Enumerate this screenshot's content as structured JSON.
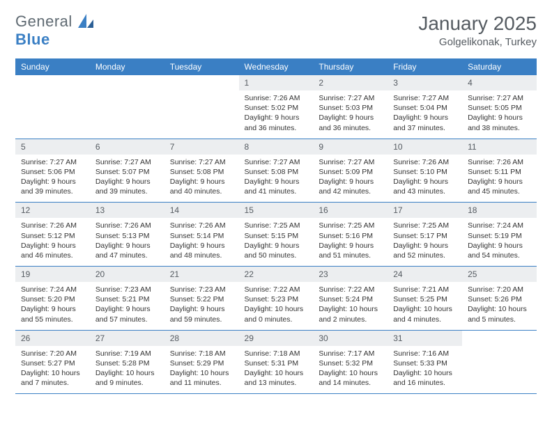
{
  "brand": {
    "name_a": "General",
    "name_b": "Blue"
  },
  "header": {
    "title": "January 2025",
    "location": "Golgelikonak, Turkey"
  },
  "colors": {
    "accent": "#3a7fc4",
    "header_bg": "#3a7fc4",
    "daynum_bg": "#eceef0",
    "text": "#333333",
    "muted": "#555b61",
    "background": "#ffffff"
  },
  "weekdays": [
    "Sunday",
    "Monday",
    "Tuesday",
    "Wednesday",
    "Thursday",
    "Friday",
    "Saturday"
  ],
  "weeks": [
    [
      null,
      null,
      null,
      {
        "n": "1",
        "sr": "7:26 AM",
        "ss": "5:02 PM",
        "dl": "9 hours and 36 minutes."
      },
      {
        "n": "2",
        "sr": "7:27 AM",
        "ss": "5:03 PM",
        "dl": "9 hours and 36 minutes."
      },
      {
        "n": "3",
        "sr": "7:27 AM",
        "ss": "5:04 PM",
        "dl": "9 hours and 37 minutes."
      },
      {
        "n": "4",
        "sr": "7:27 AM",
        "ss": "5:05 PM",
        "dl": "9 hours and 38 minutes."
      }
    ],
    [
      {
        "n": "5",
        "sr": "7:27 AM",
        "ss": "5:06 PM",
        "dl": "9 hours and 39 minutes."
      },
      {
        "n": "6",
        "sr": "7:27 AM",
        "ss": "5:07 PM",
        "dl": "9 hours and 39 minutes."
      },
      {
        "n": "7",
        "sr": "7:27 AM",
        "ss": "5:08 PM",
        "dl": "9 hours and 40 minutes."
      },
      {
        "n": "8",
        "sr": "7:27 AM",
        "ss": "5:08 PM",
        "dl": "9 hours and 41 minutes."
      },
      {
        "n": "9",
        "sr": "7:27 AM",
        "ss": "5:09 PM",
        "dl": "9 hours and 42 minutes."
      },
      {
        "n": "10",
        "sr": "7:26 AM",
        "ss": "5:10 PM",
        "dl": "9 hours and 43 minutes."
      },
      {
        "n": "11",
        "sr": "7:26 AM",
        "ss": "5:11 PM",
        "dl": "9 hours and 45 minutes."
      }
    ],
    [
      {
        "n": "12",
        "sr": "7:26 AM",
        "ss": "5:12 PM",
        "dl": "9 hours and 46 minutes."
      },
      {
        "n": "13",
        "sr": "7:26 AM",
        "ss": "5:13 PM",
        "dl": "9 hours and 47 minutes."
      },
      {
        "n": "14",
        "sr": "7:26 AM",
        "ss": "5:14 PM",
        "dl": "9 hours and 48 minutes."
      },
      {
        "n": "15",
        "sr": "7:25 AM",
        "ss": "5:15 PM",
        "dl": "9 hours and 50 minutes."
      },
      {
        "n": "16",
        "sr": "7:25 AM",
        "ss": "5:16 PM",
        "dl": "9 hours and 51 minutes."
      },
      {
        "n": "17",
        "sr": "7:25 AM",
        "ss": "5:17 PM",
        "dl": "9 hours and 52 minutes."
      },
      {
        "n": "18",
        "sr": "7:24 AM",
        "ss": "5:19 PM",
        "dl": "9 hours and 54 minutes."
      }
    ],
    [
      {
        "n": "19",
        "sr": "7:24 AM",
        "ss": "5:20 PM",
        "dl": "9 hours and 55 minutes."
      },
      {
        "n": "20",
        "sr": "7:23 AM",
        "ss": "5:21 PM",
        "dl": "9 hours and 57 minutes."
      },
      {
        "n": "21",
        "sr": "7:23 AM",
        "ss": "5:22 PM",
        "dl": "9 hours and 59 minutes."
      },
      {
        "n": "22",
        "sr": "7:22 AM",
        "ss": "5:23 PM",
        "dl": "10 hours and 0 minutes."
      },
      {
        "n": "23",
        "sr": "7:22 AM",
        "ss": "5:24 PM",
        "dl": "10 hours and 2 minutes."
      },
      {
        "n": "24",
        "sr": "7:21 AM",
        "ss": "5:25 PM",
        "dl": "10 hours and 4 minutes."
      },
      {
        "n": "25",
        "sr": "7:20 AM",
        "ss": "5:26 PM",
        "dl": "10 hours and 5 minutes."
      }
    ],
    [
      {
        "n": "26",
        "sr": "7:20 AM",
        "ss": "5:27 PM",
        "dl": "10 hours and 7 minutes."
      },
      {
        "n": "27",
        "sr": "7:19 AM",
        "ss": "5:28 PM",
        "dl": "10 hours and 9 minutes."
      },
      {
        "n": "28",
        "sr": "7:18 AM",
        "ss": "5:29 PM",
        "dl": "10 hours and 11 minutes."
      },
      {
        "n": "29",
        "sr": "7:18 AM",
        "ss": "5:31 PM",
        "dl": "10 hours and 13 minutes."
      },
      {
        "n": "30",
        "sr": "7:17 AM",
        "ss": "5:32 PM",
        "dl": "10 hours and 14 minutes."
      },
      {
        "n": "31",
        "sr": "7:16 AM",
        "ss": "5:33 PM",
        "dl": "10 hours and 16 minutes."
      },
      null
    ]
  ],
  "labels": {
    "sunrise": "Sunrise:",
    "sunset": "Sunset:",
    "daylight": "Daylight:"
  }
}
